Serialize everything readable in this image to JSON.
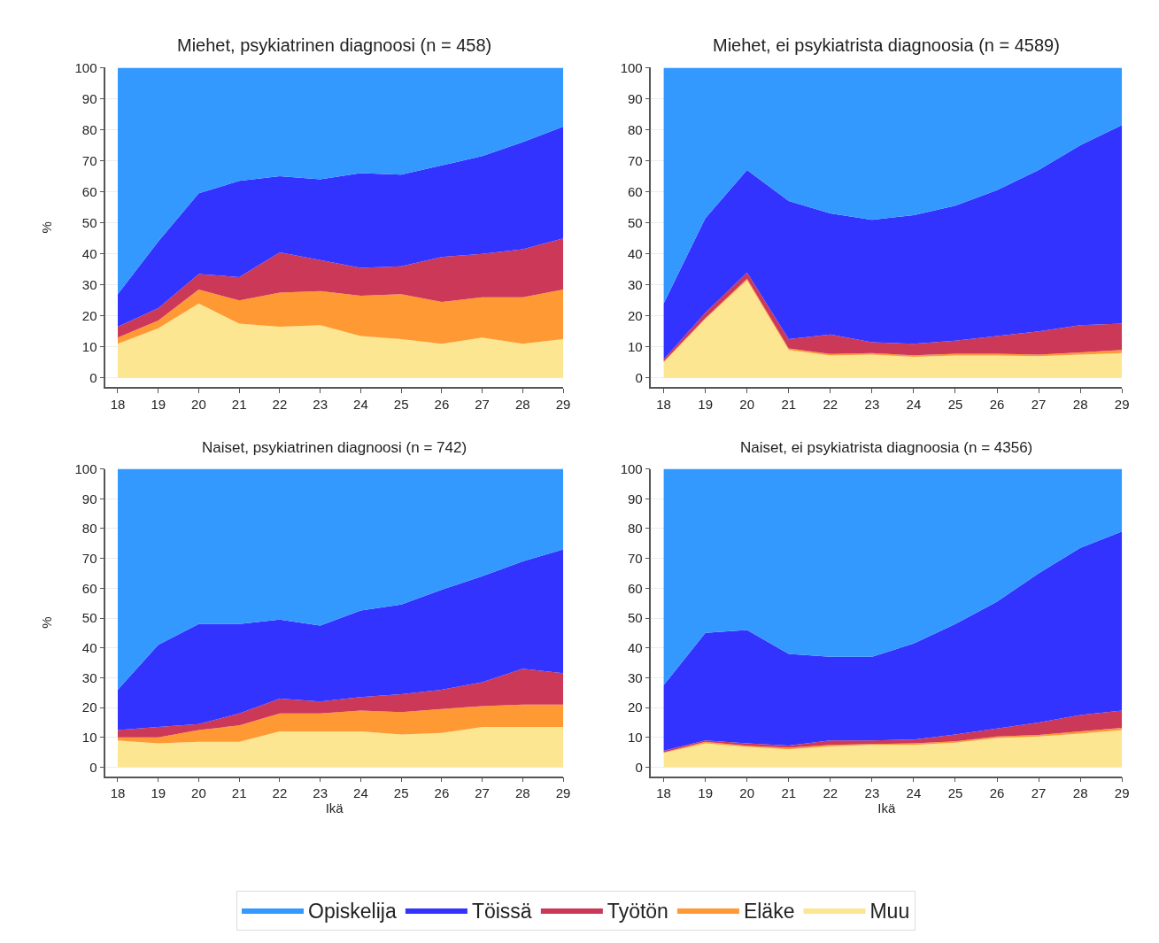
{
  "chart_data": [
    {
      "type": "area",
      "title": "Miehet, psykiatrinen diagnoosi (n = 458)",
      "ylabel": "%",
      "x": [
        18,
        19,
        20,
        21,
        22,
        23,
        24,
        25,
        26,
        27,
        28,
        29
      ],
      "xlim": [
        17.7,
        29
      ],
      "xticks": [
        18,
        19,
        20,
        21,
        22,
        23,
        24,
        25,
        26,
        27,
        28,
        29
      ],
      "ylim": [
        -3,
        100
      ],
      "yticks": [
        0,
        10,
        20,
        30,
        40,
        50,
        60,
        70,
        80,
        90,
        100
      ],
      "stacked": true,
      "grid": "y",
      "legend": "bottom",
      "series": [
        {
          "name": "Muu",
          "color": "#fde691",
          "values": [
            11,
            16,
            24,
            17.5,
            16.5,
            17,
            13.5,
            12.5,
            11,
            13,
            11,
            12.5
          ]
        },
        {
          "name": "Eläke",
          "color": "#ff9933",
          "values": [
            2,
            2.5,
            4.5,
            7.5,
            11,
            11,
            13,
            14.5,
            13.5,
            13,
            15,
            16
          ]
        },
        {
          "name": "Työtön",
          "color": "#cc3858",
          "values": [
            3.5,
            4,
            5,
            7.5,
            13,
            10,
            9,
            9,
            14.5,
            14,
            15.5,
            16.5
          ]
        },
        {
          "name": "Töissä",
          "color": "#3333ff",
          "values": [
            10.5,
            21.5,
            26,
            31,
            24.5,
            26,
            30.5,
            29.5,
            29.5,
            31.5,
            34.5,
            36
          ]
        },
        {
          "name": "Opiskelija",
          "color": "#3399ff",
          "values": [
            73,
            56,
            40.5,
            36.5,
            35,
            36,
            34,
            34.5,
            31.5,
            28.5,
            24,
            19
          ]
        }
      ]
    },
    {
      "type": "area",
      "title": "Miehet, ei psykiatrista diagnoosia (n = 4589)",
      "x": [
        18,
        19,
        20,
        21,
        22,
        23,
        24,
        25,
        26,
        27,
        28,
        29
      ],
      "xlim": [
        17.7,
        29
      ],
      "xticks": [
        18,
        19,
        20,
        21,
        22,
        23,
        24,
        25,
        26,
        27,
        28,
        29
      ],
      "ylim": [
        -3,
        100
      ],
      "yticks": [
        0,
        10,
        20,
        30,
        40,
        50,
        60,
        70,
        80,
        90,
        100
      ],
      "stacked": true,
      "grid": "y",
      "legend": "bottom",
      "series": [
        {
          "name": "Muu",
          "color": "#fde691",
          "values": [
            5,
            19,
            31.5,
            9,
            7.2,
            7.5,
            6.8,
            7.2,
            7.2,
            7,
            7.5,
            8
          ]
        },
        {
          "name": "Eläke",
          "color": "#ff9933",
          "values": [
            0.3,
            0.3,
            0.5,
            0.5,
            0.5,
            0.5,
            0.5,
            0.6,
            0.6,
            0.5,
            0.7,
            1
          ]
        },
        {
          "name": "Työtön",
          "color": "#cc3858",
          "values": [
            0.7,
            1.7,
            2,
            3,
            6.3,
            3.5,
            3.7,
            4.2,
            5.7,
            7.5,
            8.8,
            8.5
          ]
        },
        {
          "name": "Töissä",
          "color": "#3333ff",
          "values": [
            18,
            30.5,
            33,
            44.5,
            39,
            39.5,
            41.5,
            43.5,
            47,
            52,
            58,
            64
          ]
        },
        {
          "name": "Opiskelija",
          "color": "#3399ff",
          "values": [
            76,
            48.5,
            33,
            43,
            47,
            49,
            47.5,
            44.5,
            39.5,
            33,
            25,
            18.5
          ]
        }
      ]
    },
    {
      "type": "area",
      "title": "Naiset, psykiatrinen diagnoosi (n = 742)",
      "ylabel": "%",
      "xlabel": "Ikä",
      "x": [
        18,
        19,
        20,
        21,
        22,
        23,
        24,
        25,
        26,
        27,
        28,
        29
      ],
      "xlim": [
        17.7,
        29
      ],
      "xticks": [
        18,
        19,
        20,
        21,
        22,
        23,
        24,
        25,
        26,
        27,
        28,
        29
      ],
      "ylim": [
        -3,
        100
      ],
      "yticks": [
        0,
        10,
        20,
        30,
        40,
        50,
        60,
        70,
        80,
        90,
        100
      ],
      "stacked": true,
      "grid": "y",
      "legend": "bottom",
      "series": [
        {
          "name": "Muu",
          "color": "#fde691",
          "values": [
            9,
            8,
            8.5,
            8.5,
            12,
            12,
            12,
            11,
            11.5,
            13.5,
            13.5,
            13.5
          ]
        },
        {
          "name": "Eläke",
          "color": "#ff9933",
          "values": [
            1,
            2,
            4,
            5.5,
            6,
            6,
            7,
            7.5,
            8,
            7,
            7.5,
            7.5
          ]
        },
        {
          "name": "Työtön",
          "color": "#cc3858",
          "values": [
            2.5,
            3.5,
            2,
            4,
            5,
            4,
            4.5,
            6,
            6.5,
            8,
            12,
            10.5
          ]
        },
        {
          "name": "Töissä",
          "color": "#3333ff",
          "values": [
            13.5,
            27.5,
            33.5,
            30,
            26.5,
            25.5,
            29,
            30,
            33.5,
            35.5,
            36,
            41.5
          ]
        },
        {
          "name": "Opiskelija",
          "color": "#3399ff",
          "values": [
            74,
            59,
            52,
            52,
            50.5,
            52.5,
            47.5,
            45.5,
            40.5,
            36,
            31,
            27
          ]
        }
      ]
    },
    {
      "type": "area",
      "title": "Naiset, ei psykiatrista diagnoosia (n = 4356)",
      "xlabel": "Ikä",
      "x": [
        18,
        19,
        20,
        21,
        22,
        23,
        24,
        25,
        26,
        27,
        28,
        29
      ],
      "xlim": [
        17.7,
        29
      ],
      "xticks": [
        18,
        19,
        20,
        21,
        22,
        23,
        24,
        25,
        26,
        27,
        28,
        29
      ],
      "ylim": [
        -3,
        100
      ],
      "yticks": [
        0,
        10,
        20,
        30,
        40,
        50,
        60,
        70,
        80,
        90,
        100
      ],
      "stacked": true,
      "grid": "y",
      "legend": "bottom",
      "series": [
        {
          "name": "Muu",
          "color": "#fde691",
          "values": [
            4.8,
            8,
            6.8,
            6,
            7,
            7.5,
            7.5,
            8.2,
            9.8,
            10.3,
            11.3,
            12.5
          ]
        },
        {
          "name": "Eläke",
          "color": "#ff9933",
          "values": [
            0.2,
            0.5,
            0.4,
            0.5,
            0.5,
            0.3,
            0.5,
            0.5,
            0.5,
            0.5,
            0.7,
            0.7
          ]
        },
        {
          "name": "Työtön",
          "color": "#cc3858",
          "values": [
            0.5,
            0.5,
            0.8,
            0.8,
            1.5,
            1.2,
            1.3,
            2.3,
            2.7,
            4.2,
            5.5,
            5.8
          ]
        },
        {
          "name": "Töissä",
          "color": "#3333ff",
          "values": [
            22,
            36,
            38,
            30.7,
            28,
            28,
            32.2,
            37,
            42.5,
            50,
            56,
            60
          ]
        },
        {
          "name": "Opiskelija",
          "color": "#3399ff",
          "values": [
            72.5,
            55,
            54,
            62,
            63,
            63,
            58.5,
            52,
            44.5,
            35,
            26.5,
            21
          ]
        }
      ]
    }
  ]
}
